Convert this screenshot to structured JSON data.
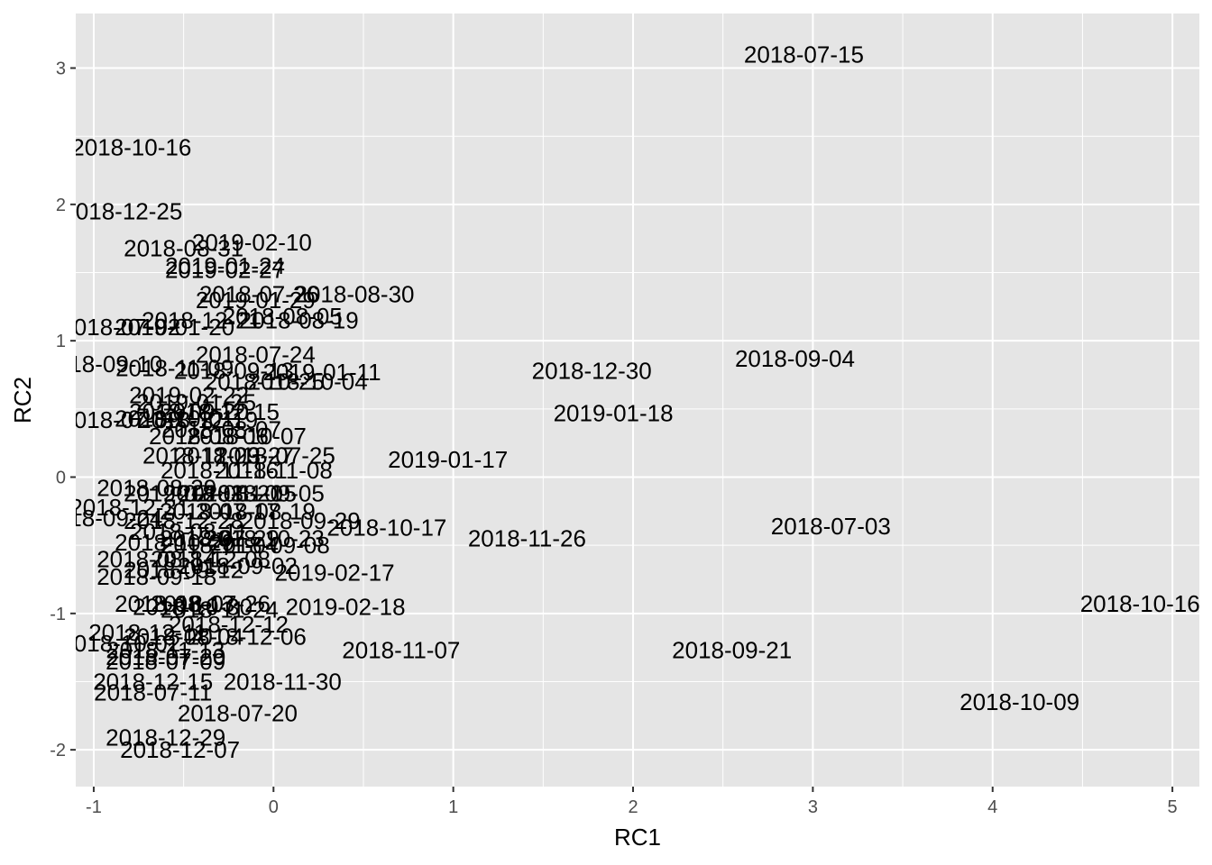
{
  "chart_data": {
    "type": "scatter",
    "title": "",
    "xlabel": "RC1",
    "ylabel": "RC2",
    "xlim": [
      -1.1,
      5.15
    ],
    "ylim": [
      -2.27,
      3.4
    ],
    "xticks": [
      -1,
      0,
      1,
      2,
      3,
      4,
      5
    ],
    "yticks": [
      -2,
      -1,
      0,
      1,
      2,
      3
    ],
    "xticklabels": [
      "-1",
      "0",
      "1",
      "2",
      "3",
      "4",
      "5"
    ],
    "yticklabels": [
      "-2",
      "-1",
      "0",
      "1",
      "2",
      "3"
    ],
    "grid": true,
    "legend": "none",
    "colors": {
      "panel": "#e5e5e5",
      "grid": "#ffffff",
      "text": "#000000",
      "tick_text": "#4d4d4d",
      "tick_mark": "#333333"
    },
    "points": [
      {
        "x": 2.95,
        "y": 3.1,
        "label": "2018-07-15"
      },
      {
        "x": -0.79,
        "y": 2.42,
        "label": "2018-10-16"
      },
      {
        "x": -0.84,
        "y": 1.95,
        "label": "2018-12-25"
      },
      {
        "x": -0.12,
        "y": 1.72,
        "label": "2019-02-10"
      },
      {
        "x": -0.5,
        "y": 1.68,
        "label": "2018-08-31"
      },
      {
        "x": -0.27,
        "y": 1.55,
        "label": "2019-01-24"
      },
      {
        "x": -0.27,
        "y": 1.52,
        "label": "2019-02-27"
      },
      {
        "x": -0.08,
        "y": 1.34,
        "label": "2018-07-26"
      },
      {
        "x": 0.45,
        "y": 1.34,
        "label": "2018-08-30"
      },
      {
        "x": -0.1,
        "y": 1.3,
        "label": "2019-01-29"
      },
      {
        "x": 0.05,
        "y": 1.18,
        "label": "2018-08-05"
      },
      {
        "x": 0.14,
        "y": 1.15,
        "label": "2018-08-19"
      },
      {
        "x": -0.4,
        "y": 1.15,
        "label": "2018-12-21"
      },
      {
        "x": -0.55,
        "y": 1.1,
        "label": "2019-01-20"
      },
      {
        "x": -0.85,
        "y": 1.1,
        "label": "2018-07-02"
      },
      {
        "x": -0.1,
        "y": 0.9,
        "label": "2018-07-24"
      },
      {
        "x": -0.95,
        "y": 0.83,
        "label": "2018-09-10"
      },
      {
        "x": -0.55,
        "y": 0.8,
        "label": "2018-11-09"
      },
      {
        "x": -0.22,
        "y": 0.78,
        "label": "2018-09-13"
      },
      {
        "x": 0.27,
        "y": 0.77,
        "label": "2019-01-11"
      },
      {
        "x": -0.05,
        "y": 0.7,
        "label": "2018-10-25"
      },
      {
        "x": 0.19,
        "y": 0.7,
        "label": "2018-10-04"
      },
      {
        "x": 1.77,
        "y": 0.78,
        "label": "2018-12-30"
      },
      {
        "x": 2.9,
        "y": 0.87,
        "label": "2018-09-04"
      },
      {
        "x": -0.47,
        "y": 0.6,
        "label": "2019-02-22"
      },
      {
        "x": -0.43,
        "y": 0.55,
        "label": "2019-01-25"
      },
      {
        "x": 1.89,
        "y": 0.47,
        "label": "2019-01-18"
      },
      {
        "x": -0.47,
        "y": 0.48,
        "label": "2018-09-20"
      },
      {
        "x": -0.3,
        "y": 0.48,
        "label": "2018-12-15"
      },
      {
        "x": -0.85,
        "y": 0.42,
        "label": "2018-07-09"
      },
      {
        "x": -0.55,
        "y": 0.43,
        "label": "2018-10-01"
      },
      {
        "x": -0.42,
        "y": 0.42,
        "label": "2018-12-19"
      },
      {
        "x": -0.29,
        "y": 0.35,
        "label": "2018-08-07"
      },
      {
        "x": -0.15,
        "y": 0.3,
        "label": "2018-10-07"
      },
      {
        "x": -0.36,
        "y": 0.3,
        "label": "2018-08-06"
      },
      {
        "x": -0.4,
        "y": 0.16,
        "label": "2018-11-23"
      },
      {
        "x": -0.22,
        "y": 0.16,
        "label": "2018-09-27"
      },
      {
        "x": 0.01,
        "y": 0.16,
        "label": "2018-07-25"
      },
      {
        "x": 0.97,
        "y": 0.13,
        "label": "2019-01-17"
      },
      {
        "x": -0.3,
        "y": 0.05,
        "label": "2018-11-16"
      },
      {
        "x": 0.0,
        "y": 0.05,
        "label": "2018-11-08"
      },
      {
        "x": -0.65,
        "y": -0.08,
        "label": "2018-08-29"
      },
      {
        "x": -0.5,
        "y": -0.12,
        "label": "2019-02-03"
      },
      {
        "x": -0.28,
        "y": -0.12,
        "label": "2018-08-20"
      },
      {
        "x": -0.05,
        "y": -0.12,
        "label": "2018-09-05"
      },
      {
        "x": -0.2,
        "y": -0.12,
        "label": "2018-11-15"
      },
      {
        "x": -0.8,
        "y": -0.22,
        "label": "2018-12-31"
      },
      {
        "x": -0.3,
        "y": -0.25,
        "label": "2018-07-17"
      },
      {
        "x": -0.1,
        "y": -0.25,
        "label": "2018-08-19"
      },
      {
        "x": -0.95,
        "y": -0.3,
        "label": "2018-09-24"
      },
      {
        "x": -0.5,
        "y": -0.32,
        "label": "2018-12-28"
      },
      {
        "x": 0.15,
        "y": -0.32,
        "label": "2018-09-29"
      },
      {
        "x": 0.63,
        "y": -0.37,
        "label": "2018-10-17"
      },
      {
        "x": -0.47,
        "y": -0.4,
        "label": "2018-08-11"
      },
      {
        "x": -0.3,
        "y": -0.45,
        "label": "2018-07-29"
      },
      {
        "x": -0.05,
        "y": -0.45,
        "label": "2018-10-23"
      },
      {
        "x": -0.55,
        "y": -0.48,
        "label": "2018-10-29"
      },
      {
        "x": -0.3,
        "y": -0.5,
        "label": "2018-11-04"
      },
      {
        "x": -0.02,
        "y": -0.5,
        "label": "2018-09-08"
      },
      {
        "x": 1.41,
        "y": -0.45,
        "label": "2018-11-26"
      },
      {
        "x": 3.1,
        "y": -0.36,
        "label": "2018-07-03"
      },
      {
        "x": -0.65,
        "y": -0.6,
        "label": "2018-08-14"
      },
      {
        "x": -0.35,
        "y": -0.6,
        "label": "2018-12-08"
      },
      {
        "x": -0.2,
        "y": -0.65,
        "label": "2018-09-02"
      },
      {
        "x": -0.5,
        "y": -0.68,
        "label": "2018-09-12"
      },
      {
        "x": -0.65,
        "y": -0.73,
        "label": "2018-09-18"
      },
      {
        "x": 0.34,
        "y": -0.7,
        "label": "2019-02-17"
      },
      {
        "x": -0.55,
        "y": -0.93,
        "label": "2018-08-13"
      },
      {
        "x": -0.35,
        "y": -0.93,
        "label": "2018-07-26"
      },
      {
        "x": -0.45,
        "y": -0.95,
        "label": "2018-10-30"
      },
      {
        "x": -0.3,
        "y": -0.97,
        "label": "2018-11-24"
      },
      {
        "x": 0.4,
        "y": -0.95,
        "label": "2019-02-18"
      },
      {
        "x": -0.25,
        "y": -1.08,
        "label": "2018-12-12"
      },
      {
        "x": -0.7,
        "y": -1.14,
        "label": "2018-12-11"
      },
      {
        "x": -0.15,
        "y": -1.17,
        "label": "2018-12-06"
      },
      {
        "x": -0.5,
        "y": -1.17,
        "label": "2018-08-04"
      },
      {
        "x": -0.85,
        "y": -1.22,
        "label": "2018-10-02"
      },
      {
        "x": -0.6,
        "y": -1.27,
        "label": "2018-11-13"
      },
      {
        "x": -0.6,
        "y": -1.32,
        "label": "2018-07-20"
      },
      {
        "x": -0.6,
        "y": -1.35,
        "label": "2018-07-09"
      },
      {
        "x": 0.71,
        "y": -1.27,
        "label": "2018-11-07"
      },
      {
        "x": 2.55,
        "y": -1.27,
        "label": "2018-09-21"
      },
      {
        "x": 4.82,
        "y": -0.93,
        "label": "2018-10-16"
      },
      {
        "x": -0.67,
        "y": -1.5,
        "label": "2018-12-15"
      },
      {
        "x": 0.05,
        "y": -1.5,
        "label": "2018-11-30"
      },
      {
        "x": -0.67,
        "y": -1.58,
        "label": "2018-07-11"
      },
      {
        "x": -0.2,
        "y": -1.73,
        "label": "2018-07-20"
      },
      {
        "x": 4.15,
        "y": -1.65,
        "label": "2018-10-09"
      },
      {
        "x": -0.6,
        "y": -1.91,
        "label": "2018-12-29"
      },
      {
        "x": -0.52,
        "y": -2.0,
        "label": "2018-12-07"
      }
    ]
  }
}
